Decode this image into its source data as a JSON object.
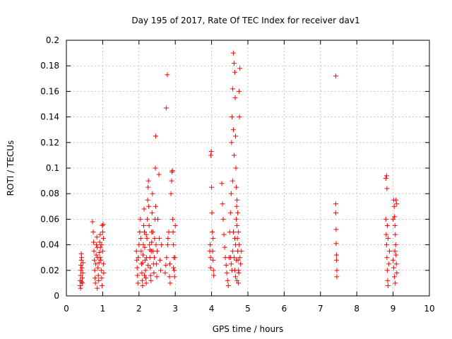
{
  "chart_data": {
    "type": "scatter",
    "title": "Day 195 of 2017, Rate Of TEC Index for receiver dav1",
    "xlabel": "GPS time / hours",
    "ylabel": "ROTI / TECUs",
    "xlim": [
      0,
      10
    ],
    "ylim": [
      0,
      0.2
    ],
    "grid": true,
    "marker": "+",
    "color": "#ff0000",
    "x_ticks": [
      {
        "value": 0,
        "label": "0"
      },
      {
        "value": 1,
        "label": "1"
      },
      {
        "value": 2,
        "label": "2"
      },
      {
        "value": 3,
        "label": "3"
      },
      {
        "value": 4,
        "label": "4"
      },
      {
        "value": 5,
        "label": "5"
      },
      {
        "value": 6,
        "label": "6"
      },
      {
        "value": 7,
        "label": "7"
      },
      {
        "value": 8,
        "label": "8"
      },
      {
        "value": 9,
        "label": "9"
      },
      {
        "value": 10,
        "label": "10"
      }
    ],
    "y_ticks": [
      {
        "value": 0,
        "label": "0"
      },
      {
        "value": 0.02,
        "label": "0.02"
      },
      {
        "value": 0.04,
        "label": "0.04"
      },
      {
        "value": 0.06,
        "label": "0.06"
      },
      {
        "value": 0.08,
        "label": "0.08"
      },
      {
        "value": 0.1,
        "label": "0.1"
      },
      {
        "value": 0.12,
        "label": "0.12"
      },
      {
        "value": 0.14,
        "label": "0.14"
      },
      {
        "value": 0.16,
        "label": "0.16"
      },
      {
        "value": 0.18,
        "label": "0.18"
      },
      {
        "value": 0.2,
        "label": "0.2"
      }
    ],
    "series": [
      {
        "name": "dav1",
        "points": [
          [
            0.38,
            0.008
          ],
          [
            0.38,
            0.012
          ],
          [
            0.39,
            0.016
          ],
          [
            0.4,
            0.02
          ],
          [
            0.4,
            0.024
          ],
          [
            0.41,
            0.028
          ],
          [
            0.41,
            0.033
          ],
          [
            0.42,
            0.03
          ],
          [
            0.43,
            0.022
          ],
          [
            0.44,
            0.014
          ],
          [
            0.44,
            0.01
          ],
          [
            0.45,
            0.018
          ],
          [
            0.46,
            0.026
          ],
          [
            0.39,
            0.006
          ],
          [
            0.42,
            0.011
          ],
          [
            0.72,
            0.058
          ],
          [
            0.74,
            0.05
          ],
          [
            0.75,
            0.042
          ],
          [
            0.76,
            0.035
          ],
          [
            0.77,
            0.028
          ],
          [
            0.78,
            0.02
          ],
          [
            0.79,
            0.014
          ],
          [
            0.8,
            0.01
          ],
          [
            0.81,
            0.025
          ],
          [
            0.82,
            0.032
          ],
          [
            0.83,
            0.04
          ],
          [
            0.84,
            0.046
          ],
          [
            0.85,
            0.038
          ],
          [
            0.86,
            0.03
          ],
          [
            0.87,
            0.022
          ],
          [
            0.88,
            0.016
          ],
          [
            0.89,
            0.012
          ],
          [
            0.9,
            0.026
          ],
          [
            0.91,
            0.034
          ],
          [
            0.92,
            0.042
          ],
          [
            0.93,
            0.048
          ],
          [
            0.94,
            0.038
          ],
          [
            0.95,
            0.028
          ],
          [
            0.96,
            0.02
          ],
          [
            0.97,
            0.014
          ],
          [
            0.98,
            0.008
          ],
          [
            0.99,
            0.055
          ],
          [
            1.0,
            0.05
          ],
          [
            1.01,
            0.056
          ],
          [
            1.02,
            0.045
          ],
          [
            1.0,
            0.035
          ],
          [
            1.02,
            0.025
          ],
          [
            1.03,
            0.018
          ],
          [
            0.97,
            0.04
          ],
          [
            0.93,
            0.03
          ],
          [
            0.85,
            0.006
          ],
          [
            1.93,
            0.035
          ],
          [
            1.94,
            0.028
          ],
          [
            1.95,
            0.022
          ],
          [
            1.96,
            0.016
          ],
          [
            1.97,
            0.01
          ],
          [
            1.98,
            0.03
          ],
          [
            2.0,
            0.04
          ],
          [
            2.02,
            0.05
          ],
          [
            2.04,
            0.06
          ],
          [
            2.05,
            0.045
          ],
          [
            2.06,
            0.035
          ],
          [
            2.07,
            0.025
          ],
          [
            2.08,
            0.018
          ],
          [
            2.09,
            0.012
          ],
          [
            2.1,
            0.008
          ],
          [
            2.11,
            0.032
          ],
          [
            2.12,
            0.04
          ],
          [
            2.13,
            0.055
          ],
          [
            2.14,
            0.068
          ],
          [
            2.15,
            0.05
          ],
          [
            2.16,
            0.038
          ],
          [
            2.17,
            0.028
          ],
          [
            2.18,
            0.02
          ],
          [
            2.19,
            0.014
          ],
          [
            2.2,
            0.01
          ],
          [
            2.21,
            0.03
          ],
          [
            2.22,
            0.045
          ],
          [
            2.23,
            0.06
          ],
          [
            2.24,
            0.075
          ],
          [
            2.25,
            0.085
          ],
          [
            2.26,
            0.09
          ],
          [
            2.27,
            0.07
          ],
          [
            2.28,
            0.055
          ],
          [
            2.29,
            0.04
          ],
          [
            2.3,
            0.03
          ],
          [
            2.31,
            0.022
          ],
          [
            2.32,
            0.016
          ],
          [
            2.33,
            0.012
          ],
          [
            2.34,
            0.035
          ],
          [
            2.35,
            0.05
          ],
          [
            2.36,
            0.065
          ],
          [
            2.37,
            0.08
          ],
          [
            2.38,
            0.05
          ],
          [
            2.39,
            0.035
          ],
          [
            2.4,
            0.025
          ],
          [
            2.41,
            0.018
          ],
          [
            2.42,
            0.03
          ],
          [
            2.43,
            0.045
          ],
          [
            2.44,
            0.06
          ],
          [
            2.45,
            0.1
          ],
          [
            2.46,
            0.125
          ],
          [
            2.46,
            0.07
          ],
          [
            2.47,
            0.04
          ],
          [
            2.48,
            0.025
          ],
          [
            2.49,
            0.015
          ],
          [
            2.5,
            0.035
          ],
          [
            2.52,
            0.06
          ],
          [
            2.55,
            0.095
          ],
          [
            2.56,
            0.045
          ],
          [
            2.58,
            0.028
          ],
          [
            2.6,
            0.02
          ],
          [
            2.62,
            0.04
          ],
          [
            2.1,
            0.026
          ],
          [
            2.2,
            0.048
          ],
          [
            2.3,
            0.036
          ],
          [
            2.15,
            0.016
          ],
          [
            2.25,
            0.024
          ],
          [
            2.35,
            0.042
          ],
          [
            2.72,
            0.018
          ],
          [
            2.74,
            0.024
          ],
          [
            2.75,
            0.147
          ],
          [
            2.76,
            0.03
          ],
          [
            2.78,
            0.173
          ],
          [
            2.79,
            0.04
          ],
          [
            2.8,
            0.045
          ],
          [
            2.82,
            0.05
          ],
          [
            2.84,
            0.015
          ],
          [
            2.86,
            0.01
          ],
          [
            2.88,
            0.08
          ],
          [
            2.9,
            0.09
          ],
          [
            2.91,
            0.097
          ],
          [
            2.92,
            0.098
          ],
          [
            2.93,
            0.06
          ],
          [
            2.94,
            0.05
          ],
          [
            2.95,
            0.04
          ],
          [
            2.96,
            0.03
          ],
          [
            2.97,
            0.02
          ],
          [
            2.98,
            0.015
          ],
          [
            2.99,
            0.03
          ],
          [
            3.0,
            0.055
          ],
          [
            2.85,
            0.025
          ],
          [
            2.95,
            0.022
          ],
          [
            3.95,
            0.035
          ],
          [
            3.96,
            0.04
          ],
          [
            3.97,
            0.03
          ],
          [
            3.98,
            0.11
          ],
          [
            3.99,
            0.113
          ],
          [
            4.0,
            0.085
          ],
          [
            4.01,
            0.065
          ],
          [
            4.02,
            0.05
          ],
          [
            4.03,
            0.035
          ],
          [
            4.04,
            0.028
          ],
          [
            4.05,
            0.02
          ],
          [
            4.06,
            0.016
          ],
          [
            4.04,
            0.045
          ],
          [
            3.97,
            0.022
          ],
          [
            4.28,
            0.088
          ],
          [
            4.3,
            0.072
          ],
          [
            4.32,
            0.06
          ],
          [
            4.34,
            0.048
          ],
          [
            4.36,
            0.038
          ],
          [
            4.38,
            0.03
          ],
          [
            4.4,
            0.024
          ],
          [
            4.42,
            0.018
          ],
          [
            4.44,
            0.012
          ],
          [
            4.46,
            0.008
          ],
          [
            4.48,
            0.03
          ],
          [
            4.5,
            0.05
          ],
          [
            4.52,
            0.065
          ],
          [
            4.54,
            0.08
          ],
          [
            4.55,
            0.12
          ],
          [
            4.56,
            0.14
          ],
          [
            4.58,
            0.162
          ],
          [
            4.6,
            0.19
          ],
          [
            4.62,
            0.182
          ],
          [
            4.64,
            0.175
          ],
          [
            4.65,
            0.155
          ],
          [
            4.66,
            0.125
          ],
          [
            4.67,
            0.1
          ],
          [
            4.68,
            0.085
          ],
          [
            4.69,
            0.07
          ],
          [
            4.7,
            0.055
          ],
          [
            4.71,
            0.045
          ],
          [
            4.72,
            0.035
          ],
          [
            4.73,
            0.028
          ],
          [
            4.74,
            0.02
          ],
          [
            4.75,
            0.018
          ],
          [
            4.76,
            0.16
          ],
          [
            4.77,
            0.14
          ],
          [
            4.78,
            0.178
          ],
          [
            4.6,
            0.13
          ],
          [
            4.62,
            0.11
          ],
          [
            4.58,
            0.09
          ],
          [
            4.6,
            0.05
          ],
          [
            4.62,
            0.03
          ],
          [
            4.64,
            0.02
          ],
          [
            4.66,
            0.04
          ],
          [
            4.68,
            0.06
          ],
          [
            4.56,
            0.02
          ],
          [
            4.52,
            0.03
          ],
          [
            4.7,
            0.075
          ],
          [
            4.72,
            0.065
          ],
          [
            4.74,
            0.05
          ],
          [
            4.76,
            0.04
          ],
          [
            4.78,
            0.03
          ],
          [
            4.8,
            0.025
          ],
          [
            4.82,
            0.035
          ],
          [
            4.66,
            0.015
          ],
          [
            4.7,
            0.012
          ],
          [
            4.74,
            0.01
          ],
          [
            4.54,
            0.025
          ],
          [
            4.58,
            0.035
          ],
          [
            4.64,
            0.045
          ],
          [
            4.68,
            0.028
          ],
          [
            7.42,
            0.172
          ],
          [
            7.42,
            0.072
          ],
          [
            7.42,
            0.065
          ],
          [
            7.43,
            0.052
          ],
          [
            7.43,
            0.041
          ],
          [
            7.44,
            0.032
          ],
          [
            7.44,
            0.028
          ],
          [
            7.45,
            0.02
          ],
          [
            7.45,
            0.015
          ],
          [
            8.8,
            0.092
          ],
          [
            8.82,
            0.094
          ],
          [
            8.83,
            0.084
          ],
          [
            8.8,
            0.06
          ],
          [
            8.81,
            0.048
          ],
          [
            8.82,
            0.04
          ],
          [
            8.83,
            0.03
          ],
          [
            8.84,
            0.02
          ],
          [
            8.85,
            0.012
          ],
          [
            8.86,
            0.008
          ],
          [
            8.88,
            0.025
          ],
          [
            8.9,
            0.035
          ],
          [
            9.0,
            0.06
          ],
          [
            9.02,
            0.075
          ],
          [
            9.03,
            0.07
          ],
          [
            9.04,
            0.062
          ],
          [
            9.05,
            0.055
          ],
          [
            9.06,
            0.048
          ],
          [
            9.07,
            0.04
          ],
          [
            9.08,
            0.032
          ],
          [
            9.09,
            0.025
          ],
          [
            9.1,
            0.018
          ],
          [
            9.1,
            0.072
          ],
          [
            9.08,
            0.075
          ],
          [
            9.06,
            0.01
          ],
          [
            9.04,
            0.015
          ],
          [
            9.02,
            0.022
          ],
          [
            9.0,
            0.028
          ],
          [
            8.84,
            0.055
          ],
          [
            8.86,
            0.045
          ],
          [
            9.05,
            0.035
          ]
        ]
      }
    ]
  }
}
